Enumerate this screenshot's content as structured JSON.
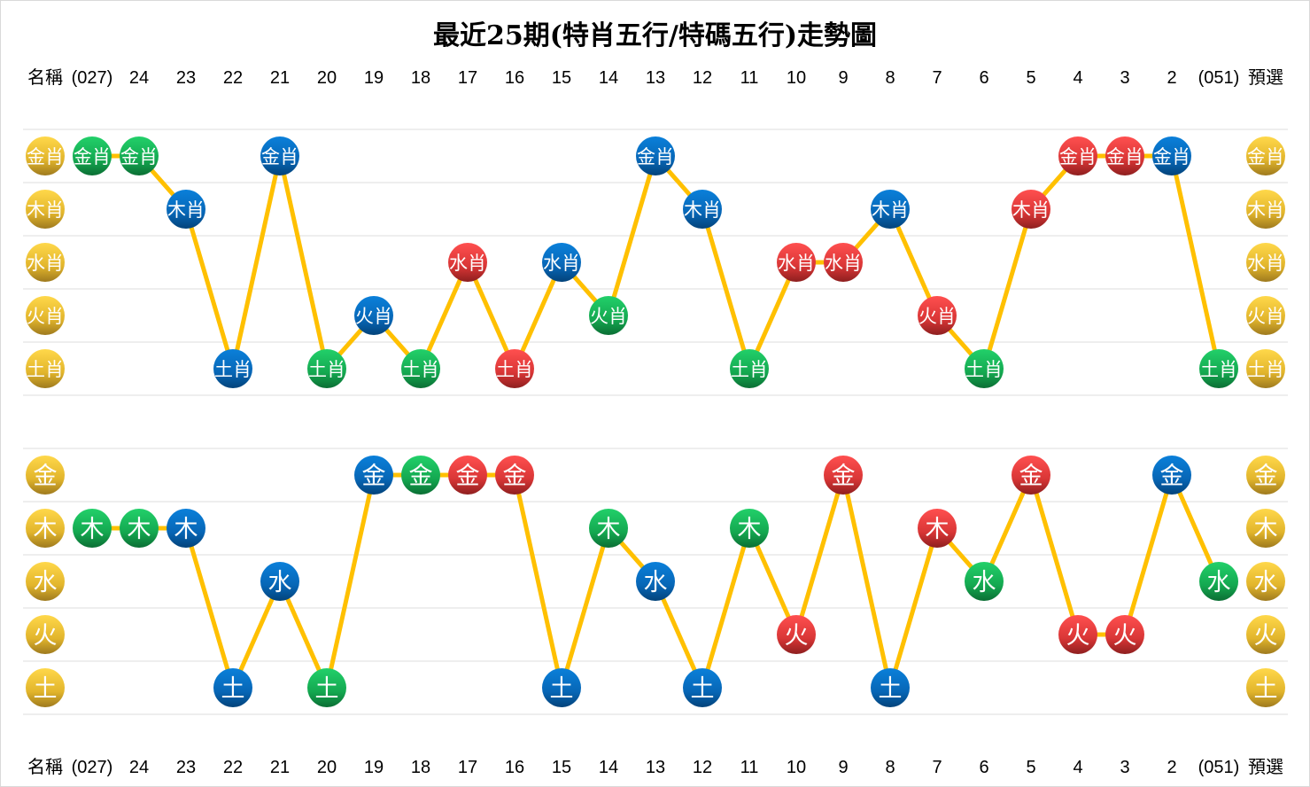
{
  "title": "最近25期(特肖五行/特碼五行)走勢圖",
  "chart_data": {
    "type": "line",
    "header_label": "名稱",
    "predict_label": "預選",
    "columns": [
      "(027)",
      "24",
      "23",
      "22",
      "21",
      "20",
      "19",
      "18",
      "17",
      "16",
      "15",
      "14",
      "13",
      "12",
      "11",
      "10",
      "9",
      "8",
      "7",
      "6",
      "5",
      "4",
      "3",
      "2",
      "(051)"
    ],
    "line_color": "#FFC000",
    "ball_colors": {
      "gold": "#E8B923",
      "green": "#1DB954",
      "blue": "#0A6CC0",
      "red": "#E03A3A"
    },
    "charts": [
      {
        "categories": [
          "金肖",
          "木肖",
          "水肖",
          "火肖",
          "土肖"
        ],
        "values": [
          "金肖",
          "金肖",
          "木肖",
          "土肖",
          "金肖",
          "土肖",
          "火肖",
          "土肖",
          "水肖",
          "土肖",
          "水肖",
          "火肖",
          "金肖",
          "木肖",
          "土肖",
          "水肖",
          "水肖",
          "木肖",
          "火肖",
          "土肖",
          "木肖",
          "金肖",
          "金肖",
          "金肖",
          "土肖"
        ],
        "colors": [
          "green",
          "green",
          "blue",
          "blue",
          "blue",
          "green",
          "blue",
          "green",
          "red",
          "red",
          "blue",
          "green",
          "blue",
          "blue",
          "green",
          "red",
          "red",
          "blue",
          "red",
          "green",
          "red",
          "red",
          "red",
          "blue",
          "green"
        ]
      },
      {
        "categories": [
          "金",
          "木",
          "水",
          "火",
          "土"
        ],
        "values": [
          "木",
          "木",
          "木",
          "土",
          "水",
          "土",
          "金",
          "金",
          "金",
          "金",
          "土",
          "木",
          "水",
          "土",
          "木",
          "火",
          "金",
          "土",
          "木",
          "水",
          "金",
          "火",
          "火",
          "金",
          "水"
        ],
        "colors": [
          "green",
          "green",
          "blue",
          "blue",
          "blue",
          "green",
          "blue",
          "green",
          "red",
          "red",
          "blue",
          "green",
          "blue",
          "blue",
          "green",
          "red",
          "red",
          "blue",
          "red",
          "green",
          "red",
          "red",
          "red",
          "blue",
          "green"
        ]
      }
    ]
  }
}
